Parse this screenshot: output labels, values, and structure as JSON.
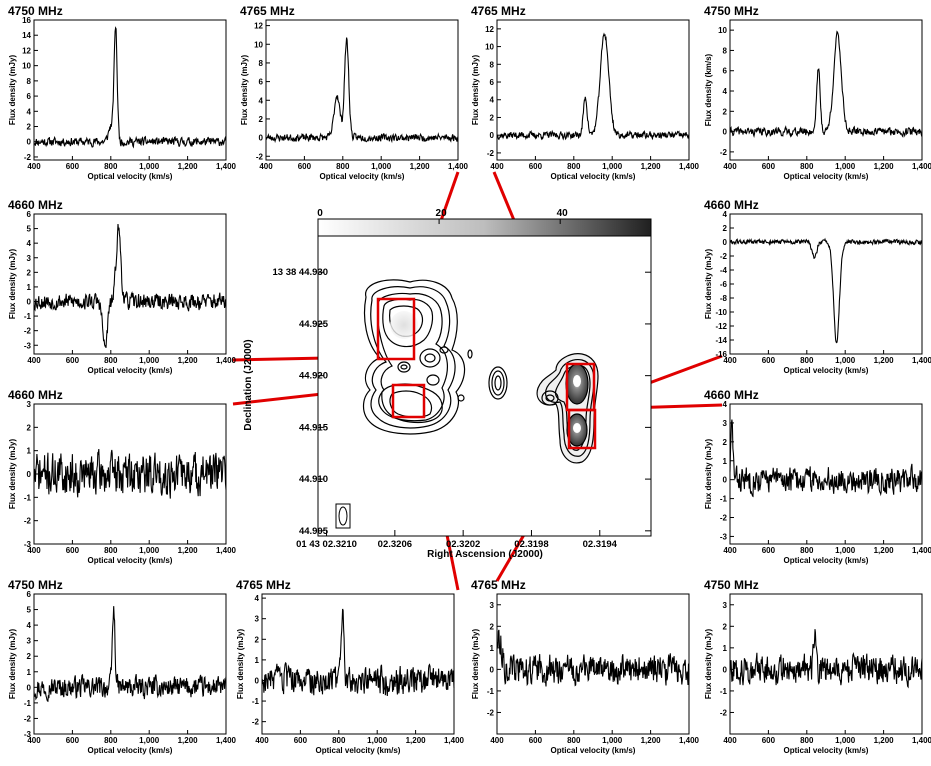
{
  "colors": {
    "line": "#000000",
    "box": "#e00000",
    "connector": "#e00000"
  },
  "center_map": {
    "colorbar_ticks": [
      "0",
      "20",
      "40"
    ],
    "colorbar_values": [
      0,
      20,
      40
    ],
    "colorbar_range": [
      0,
      55
    ],
    "ylabel": "Declination (J2000)",
    "xlabel": "Right Ascension (J2000)",
    "yticks": [
      "13 38 44.930",
      "44.925",
      "44.920",
      "44.915",
      "44.910",
      "44.905"
    ],
    "ytick_values": [
      44.93,
      44.925,
      44.92,
      44.915,
      44.91,
      44.905
    ],
    "ylim": [
      44.9045,
      44.9335
    ],
    "xticks": [
      "01 43 02.3210",
      "02.3206",
      "02.3202",
      "02.3198",
      "02.3194"
    ],
    "xtick_values": [
      2.321,
      2.3206,
      2.3202,
      2.3198,
      2.3194
    ],
    "xlim": [
      2.32105,
      2.3191
    ]
  },
  "chart_data": [
    {
      "type": "line",
      "id": "p0",
      "title": "4750 MHz",
      "xlabel": "Optical velocity (km/s)",
      "ylabel": "Flux density (mJy)",
      "xlim": [
        400,
        1400
      ],
      "ylim": [
        -2.4,
        16
      ],
      "xticks": [
        400,
        600,
        800,
        1000,
        1200,
        1400
      ],
      "xtick_labels": [
        "400",
        "600",
        "800",
        "1,000",
        "1,200",
        "1,400"
      ],
      "yticks": [
        -2,
        0,
        2,
        4,
        6,
        8,
        10,
        12,
        14,
        16
      ],
      "noise": 0.5,
      "seed": 11,
      "components": [
        {
          "v": 800,
          "a": 2,
          "w": 12
        },
        {
          "v": 825,
          "a": 15,
          "w": 8
        }
      ]
    },
    {
      "type": "line",
      "id": "p1",
      "title": "4765 MHz",
      "xlabel": "Optical velocity (km/s)",
      "ylabel": "Flux density (mJy)",
      "xlim": [
        400,
        1400
      ],
      "ylim": [
        -2.4,
        12.6
      ],
      "xticks": [
        400,
        600,
        800,
        1000,
        1200,
        1400
      ],
      "xtick_labels": [
        "400",
        "600",
        "800",
        "1,000",
        "1,200",
        "1,400"
      ],
      "yticks": [
        -2,
        0,
        2,
        4,
        6,
        8,
        10,
        12
      ],
      "noise": 0.35,
      "seed": 23,
      "components": [
        {
          "v": 770,
          "a": 4.6,
          "w": 15
        },
        {
          "v": 820,
          "a": 10.5,
          "w": 11
        }
      ]
    },
    {
      "type": "line",
      "id": "p2",
      "title": "4765 MHz",
      "xlabel": "Optical velocity (km/s)",
      "ylabel": "Flux density (mJy)",
      "xlim": [
        400,
        1400
      ],
      "ylim": [
        -2.8,
        13
      ],
      "xticks": [
        400,
        600,
        800,
        1000,
        1200,
        1400
      ],
      "xtick_labels": [
        "400",
        "600",
        "800",
        "1,000",
        "1,200",
        "1,400"
      ],
      "yticks": [
        -2,
        0,
        2,
        4,
        6,
        8,
        10,
        12
      ],
      "noise": 0.35,
      "seed": 37,
      "components": [
        {
          "v": 860,
          "a": 4.3,
          "w": 10
        },
        {
          "v": 960,
          "a": 11.5,
          "w": 22
        }
      ]
    },
    {
      "type": "line",
      "id": "p3",
      "title": "4750 MHz",
      "xlabel": "Optical velocity (km/s)",
      "ylabel": "Flux density (km/s)",
      "xlim": [
        400,
        1400
      ],
      "ylim": [
        -2.8,
        11
      ],
      "xticks": [
        400,
        600,
        800,
        1000,
        1200,
        1400
      ],
      "xtick_labels": [
        "400",
        "600",
        "800",
        "1,000",
        "1,200",
        "1,400"
      ],
      "yticks": [
        -2,
        0,
        2,
        4,
        6,
        8,
        10
      ],
      "noise": 0.35,
      "seed": 41,
      "components": [
        {
          "v": 860,
          "a": 6.3,
          "w": 9
        },
        {
          "v": 960,
          "a": 9.5,
          "w": 20
        }
      ]
    },
    {
      "type": "line",
      "id": "p4",
      "title": "4660 MHz",
      "xlabel": "Optical velocity (km/s)",
      "ylabel": "Flux density (mJy)",
      "xlim": [
        400,
        1400
      ],
      "ylim": [
        -3.6,
        6
      ],
      "xticks": [
        400,
        600,
        800,
        1000,
        1200,
        1400
      ],
      "xtick_labels": [
        "400",
        "600",
        "800",
        "1,000",
        "1,200",
        "1,400"
      ],
      "yticks": [
        -3,
        -2,
        -1,
        0,
        1,
        2,
        3,
        4,
        5,
        6
      ],
      "noise": 0.5,
      "seed": 53,
      "components": [
        {
          "v": 770,
          "a": -3.2,
          "w": 12
        },
        {
          "v": 840,
          "a": 5,
          "w": 12
        }
      ]
    },
    {
      "type": "line",
      "id": "p5",
      "title": "4660 MHz",
      "xlabel": "Optical velocity (km/s)",
      "ylabel": "Flux density (mJy)",
      "xlim": [
        400,
        1400
      ],
      "ylim": [
        -16,
        4
      ],
      "xticks": [
        400,
        600,
        800,
        1000,
        1200,
        1400
      ],
      "xtick_labels": [
        "400",
        "600",
        "800",
        "1,000",
        "1,200",
        "1,400"
      ],
      "yticks": [
        -16,
        -14,
        -12,
        -10,
        -8,
        -6,
        -4,
        -2,
        0,
        2,
        4
      ],
      "noise": 0.3,
      "seed": 61,
      "components": [
        {
          "v": 840,
          "a": -2.2,
          "w": 12
        },
        {
          "v": 955,
          "a": -14.5,
          "w": 15
        }
      ]
    },
    {
      "type": "line",
      "id": "p6",
      "title": "4660 MHz",
      "xlabel": "Optical velocity (km/s)",
      "ylabel": "Flux density (mJy)",
      "xlim": [
        400,
        1400
      ],
      "ylim": [
        -3,
        3
      ],
      "xticks": [
        400,
        600,
        800,
        1000,
        1200,
        1400
      ],
      "xtick_labels": [
        "400",
        "600",
        "800",
        "1,000",
        "1,200",
        "1,400"
      ],
      "yticks": [
        -3,
        -2,
        -1,
        0,
        1,
        2,
        3
      ],
      "noise": 0.8,
      "seed": 71,
      "components": []
    },
    {
      "type": "line",
      "id": "p7",
      "title": "4660 MHz",
      "xlabel": "Optical velocity (km/s)",
      "ylabel": "Flux density (mJy)",
      "xlim": [
        400,
        1400
      ],
      "ylim": [
        -3.4,
        4
      ],
      "xticks": [
        400,
        600,
        800,
        1000,
        1200,
        1400
      ],
      "xtick_labels": [
        "400",
        "600",
        "800",
        "1,000",
        "1,200",
        "1,400"
      ],
      "yticks": [
        -3,
        -2,
        -1,
        0,
        1,
        2,
        3,
        4
      ],
      "noise": 0.6,
      "seed": 83,
      "components": [
        {
          "v": 410,
          "a": 2.8,
          "w": 6
        }
      ]
    },
    {
      "type": "line",
      "id": "p8",
      "title": "4750 MHz",
      "xlabel": "Optical velocity (km/s)",
      "ylabel": "Flux density (mJy)",
      "xlim": [
        400,
        1400
      ],
      "ylim": [
        -3,
        6
      ],
      "xticks": [
        400,
        600,
        800,
        1000,
        1200,
        1400
      ],
      "xtick_labels": [
        "400",
        "600",
        "800",
        "1,000",
        "1,200",
        "1,400"
      ],
      "yticks": [
        -3,
        -2,
        -1,
        0,
        1,
        2,
        3,
        4,
        5,
        6
      ],
      "noise": 0.6,
      "seed": 97,
      "components": [
        {
          "v": 815,
          "a": 5,
          "w": 7
        }
      ]
    },
    {
      "type": "line",
      "id": "p9",
      "title": "4765 MHz",
      "xlabel": "Optical velocity (km/s)",
      "ylabel": "Flux density (mJy)",
      "xlim": [
        400,
        1400
      ],
      "ylim": [
        -2.6,
        4.2
      ],
      "xticks": [
        400,
        600,
        800,
        1000,
        1200,
        1400
      ],
      "xtick_labels": [
        "400",
        "600",
        "800",
        "1,000",
        "1,200",
        "1,400"
      ],
      "yticks": [
        -2,
        -1,
        0,
        1,
        2,
        3,
        4
      ],
      "noise": 0.6,
      "seed": 103,
      "components": [
        {
          "v": 820,
          "a": 3.2,
          "w": 7
        }
      ]
    },
    {
      "type": "line",
      "id": "p10",
      "title": "4765 MHz",
      "xlabel": "Optical velocity (km/s)",
      "ylabel": "Flux density (mJy)",
      "xlim": [
        400,
        1400
      ],
      "ylim": [
        -3,
        3.5
      ],
      "xticks": [
        400,
        600,
        800,
        1000,
        1200,
        1400
      ],
      "xtick_labels": [
        "400",
        "600",
        "800",
        "1,000",
        "1,200",
        "1,400"
      ],
      "yticks": [
        -2,
        -1,
        0,
        1,
        2,
        3
      ],
      "noise": 0.6,
      "seed": 113,
      "components": [
        {
          "v": 410,
          "a": 1.5,
          "w": 15
        }
      ]
    },
    {
      "type": "line",
      "id": "p11",
      "title": "4750 MHz",
      "xlabel": "Optical velocity (km/s)",
      "ylabel": "Flux density (mJy)",
      "xlim": [
        400,
        1400
      ],
      "ylim": [
        -3,
        3.5
      ],
      "xticks": [
        400,
        600,
        800,
        1000,
        1200,
        1400
      ],
      "xtick_labels": [
        "400",
        "600",
        "800",
        "1,000",
        "1,200",
        "1,400"
      ],
      "yticks": [
        -2,
        -1,
        0,
        1,
        2,
        3
      ],
      "noise": 0.6,
      "seed": 127,
      "components": [
        {
          "v": 840,
          "a": 1.5,
          "w": 6
        }
      ]
    }
  ]
}
